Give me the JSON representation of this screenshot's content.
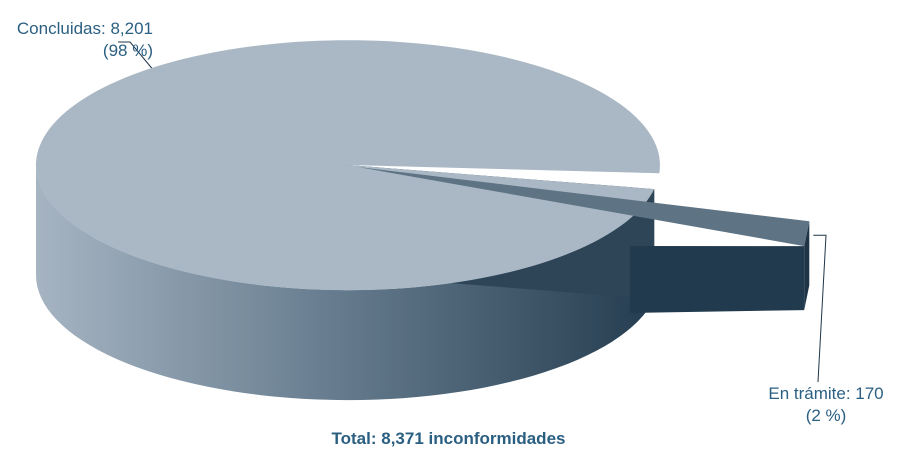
{
  "chart_data": {
    "type": "pie",
    "title": "",
    "total_label": "Total: 8,371 inconformidades",
    "slices": [
      {
        "name": "Concluidas",
        "value": 8201,
        "label": "Concluidas: 8,201",
        "pct_label": "(98  %)"
      },
      {
        "name": "En trámite",
        "value": 170,
        "label": "En trámite: 170",
        "pct_label": "(2 %)"
      }
    ],
    "colors": {
      "top_main": "#aab8c5",
      "side_main_light": "#9aa8b6",
      "side_main_dark": "#2d4557",
      "top_small": "#5e7384",
      "side_small": "#213a4d",
      "label": "#2b5f82"
    }
  }
}
